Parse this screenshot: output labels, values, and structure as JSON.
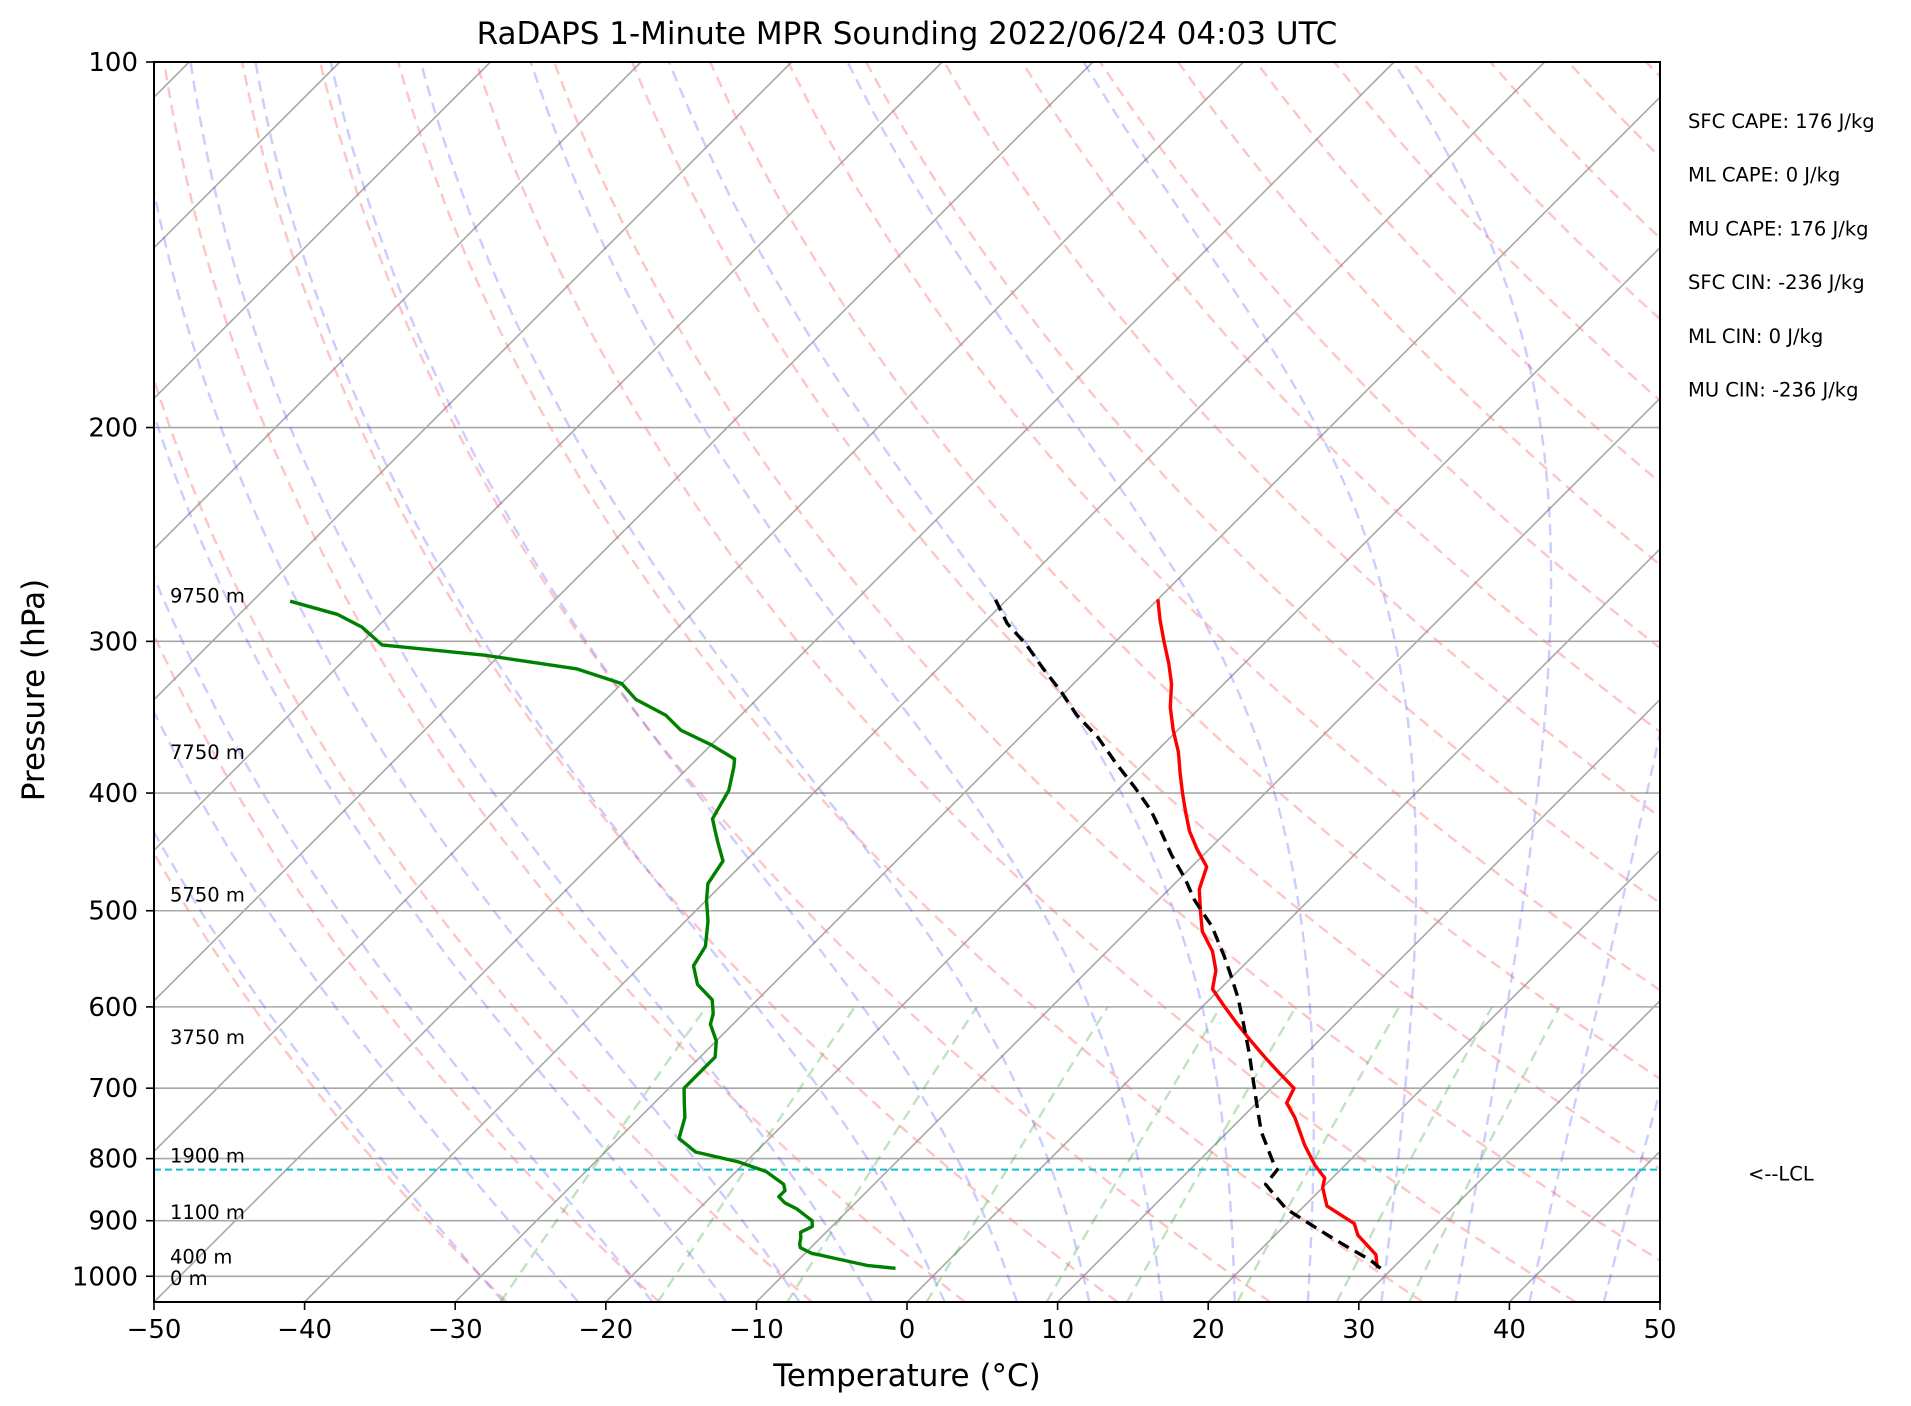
{
  "chart_data": {
    "type": "line",
    "title": "RaDAPS 1-Minute MPR Sounding 2022/06/24 04:03 UTC",
    "xlabel": "Temperature (°C)",
    "ylabel": "Pressure (hPa)",
    "x_range": [
      -50,
      50
    ],
    "y_range": [
      1050,
      100
    ],
    "y_scale": "log",
    "skew": "skew-T log-p (isotherms tilted 45°)",
    "x_ticks": [
      "−50",
      "−40",
      "−30",
      "−20",
      "−10",
      "0",
      "10",
      "20",
      "30",
      "40",
      "50"
    ],
    "y_ticks": [
      "100",
      "200",
      "300",
      "400",
      "500",
      "600",
      "700",
      "800",
      "900",
      "1000"
    ],
    "grid": true,
    "height_labels": [
      {
        "p": 275,
        "label": "9750 m"
      },
      {
        "p": 370,
        "label": "7750 m"
      },
      {
        "p": 485,
        "label": "5750 m"
      },
      {
        "p": 635,
        "label": "3750 m"
      },
      {
        "p": 795,
        "label": "1900 m"
      },
      {
        "p": 885,
        "label": "1100 m"
      },
      {
        "p": 963,
        "label": "400 m"
      },
      {
        "p": 1003,
        "label": "0 m"
      }
    ],
    "stats": [
      "SFC CAPE: 176 J/kg",
      "ML CAPE: 0 J/kg",
      "MU CAPE: 176 J/kg",
      "SFC CIN: -236 J/kg",
      "ML CIN: 0 J/kg",
      "MU CIN: -236 J/kg"
    ],
    "lcl": {
      "p": 817,
      "label": "<--LCL"
    },
    "series": [
      {
        "key": "temperature",
        "color": "#ff0000",
        "dash": "",
        "points": [
          [
            29.0,
            985
          ],
          [
            28.0,
            960
          ],
          [
            25.5,
            925
          ],
          [
            24.5,
            905
          ],
          [
            23.0,
            890
          ],
          [
            21.5,
            875
          ],
          [
            20.5,
            855
          ],
          [
            20.0,
            845
          ],
          [
            19.5,
            830
          ],
          [
            18.0,
            810
          ],
          [
            16.0,
            780
          ],
          [
            13.5,
            740
          ],
          [
            12.0,
            720
          ],
          [
            11.5,
            700
          ],
          [
            9.5,
            680
          ],
          [
            7.5,
            660
          ],
          [
            5.5,
            640
          ],
          [
            3.5,
            620
          ],
          [
            1.5,
            600
          ],
          [
            -0.5,
            580
          ],
          [
            -1.5,
            560
          ],
          [
            -3.0,
            540
          ],
          [
            -5.0,
            520
          ],
          [
            -6.5,
            500
          ],
          [
            -8.0,
            480
          ],
          [
            -9.0,
            460
          ],
          [
            -10.8,
            445
          ],
          [
            -12.5,
            430
          ],
          [
            -14.0,
            415
          ],
          [
            -15.5,
            400
          ],
          [
            -17.0,
            385
          ],
          [
            -18.5,
            370
          ],
          [
            -20.3,
            355
          ],
          [
            -22.0,
            340
          ],
          [
            -23.5,
            325
          ],
          [
            -25.0,
            313
          ],
          [
            -26.8,
            300
          ],
          [
            -28.5,
            288
          ],
          [
            -30.0,
            277
          ]
        ]
      },
      {
        "key": "dewpoint",
        "color": "#008000",
        "dash": "",
        "points": [
          [
            -3.0,
            985
          ],
          [
            -5.0,
            980
          ],
          [
            -8.0,
            965
          ],
          [
            -9.0,
            960
          ],
          [
            -9.5,
            958
          ],
          [
            -10.7,
            947
          ],
          [
            -11.0,
            940
          ],
          [
            -11.3,
            930
          ],
          [
            -11.7,
            920
          ],
          [
            -11.3,
            910
          ],
          [
            -11.7,
            900
          ],
          [
            -12.6,
            890
          ],
          [
            -13.5,
            880
          ],
          [
            -14.7,
            870
          ],
          [
            -15.5,
            860
          ],
          [
            -15.5,
            850
          ],
          [
            -16.0,
            840
          ],
          [
            -17.0,
            830
          ],
          [
            -18.0,
            820
          ],
          [
            -20.5,
            805
          ],
          [
            -24.0,
            790
          ],
          [
            -26.0,
            770
          ],
          [
            -27.0,
            740
          ],
          [
            -28.0,
            720
          ],
          [
            -29.0,
            700
          ],
          [
            -29.0,
            660
          ],
          [
            -30.0,
            640
          ],
          [
            -31.5,
            620
          ],
          [
            -32.0,
            608
          ],
          [
            -33.0,
            592
          ],
          [
            -35.0,
            575
          ],
          [
            -36.5,
            555
          ],
          [
            -37.0,
            535
          ],
          [
            -38.5,
            510
          ],
          [
            -40.0,
            490
          ],
          [
            -41.0,
            475
          ],
          [
            -41.5,
            455
          ],
          [
            -43.0,
            440
          ],
          [
            -44.0,
            430
          ],
          [
            -45.0,
            420
          ],
          [
            -45.8,
            398
          ],
          [
            -47.0,
            381
          ],
          [
            -47.5,
            375
          ],
          [
            -50.0,
            365
          ],
          [
            -53.0,
            355
          ],
          [
            -55.0,
            345
          ],
          [
            -58.0,
            335
          ],
          [
            -60.0,
            325
          ],
          [
            -64.0,
            316
          ],
          [
            -71.0,
            308
          ],
          [
            -78.5,
            302
          ],
          [
            -81.0,
            292
          ],
          [
            -83.5,
            285
          ],
          [
            -87.5,
            278
          ]
        ]
      },
      {
        "key": "parcel",
        "color": "#000000",
        "dash": "12,7",
        "points": [
          [
            29.2,
            985
          ],
          [
            28.0,
            970
          ],
          [
            26.0,
            950
          ],
          [
            24.0,
            930
          ],
          [
            21.5,
            905
          ],
          [
            19.0,
            880
          ],
          [
            17.5,
            860
          ],
          [
            16.0,
            840
          ],
          [
            15.8,
            817
          ],
          [
            15.6,
            815
          ],
          [
            12.2,
            760
          ],
          [
            10.0,
            720
          ],
          [
            8.0,
            685
          ],
          [
            6.2,
            655
          ],
          [
            3.9,
            620
          ],
          [
            1.8,
            590
          ],
          [
            -0.2,
            565
          ],
          [
            -1.9,
            545
          ],
          [
            -4.7,
            515
          ],
          [
            -7.6,
            490
          ],
          [
            -9.7,
            470
          ],
          [
            -12.1,
            450
          ],
          [
            -14.4,
            430
          ],
          [
            -16.5,
            413
          ],
          [
            -19.0,
            396
          ],
          [
            -21.9,
            378
          ],
          [
            -24.8,
            360
          ],
          [
            -27.7,
            345
          ],
          [
            -30.3,
            330
          ],
          [
            -33.0,
            316
          ],
          [
            -35.7,
            302
          ],
          [
            -38.4,
            290
          ],
          [
            -40.8,
            277
          ]
        ]
      }
    ]
  }
}
